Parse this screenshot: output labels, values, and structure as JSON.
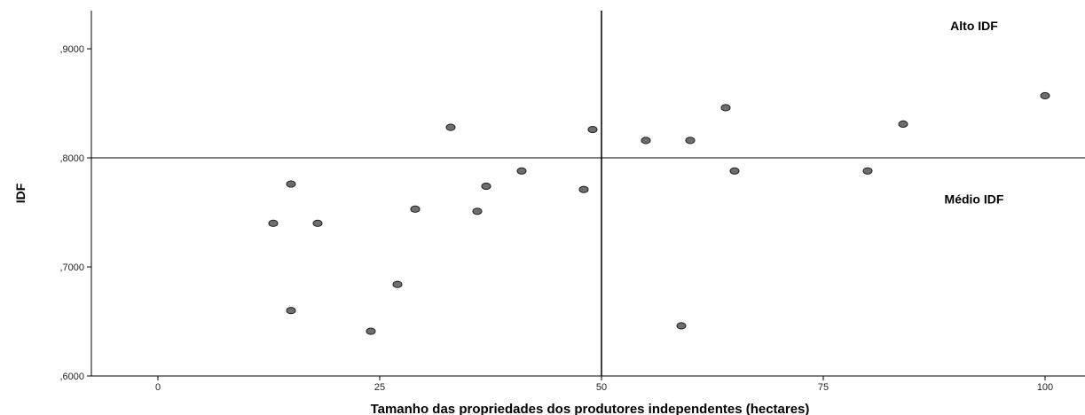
{
  "chart_data": {
    "type": "scatter",
    "xlabel": "Tamanho das propriedades dos produtores independentes (hectares)",
    "ylabel": "IDF",
    "xlim": [
      -7.5,
      104.5
    ],
    "ylim": [
      0.6,
      0.935
    ],
    "x_ticks": [
      0,
      25,
      50,
      75,
      100
    ],
    "x_tick_labels": [
      "0",
      "25",
      "50",
      "75",
      "100"
    ],
    "y_ticks": [
      0.6,
      0.7,
      0.8,
      0.9
    ],
    "y_tick_labels": [
      ",6000",
      ",7000",
      ",8000",
      ",9000"
    ],
    "reference_lines": {
      "x": 50,
      "y": 0.8
    },
    "annotations": [
      {
        "text": "Alto IDF",
        "x": 92,
        "y": 0.917
      },
      {
        "text": "Médio IDF",
        "x": 92,
        "y": 0.758
      }
    ],
    "grid": false,
    "marker_color": "#6e6e6e",
    "points": [
      {
        "x": 13,
        "y": 0.74
      },
      {
        "x": 15,
        "y": 0.776
      },
      {
        "x": 15,
        "y": 0.66
      },
      {
        "x": 18,
        "y": 0.74
      },
      {
        "x": 24,
        "y": 0.641
      },
      {
        "x": 27,
        "y": 0.684
      },
      {
        "x": 29,
        "y": 0.753
      },
      {
        "x": 33,
        "y": 0.828
      },
      {
        "x": 36,
        "y": 0.751
      },
      {
        "x": 37,
        "y": 0.774
      },
      {
        "x": 41,
        "y": 0.788
      },
      {
        "x": 48,
        "y": 0.771
      },
      {
        "x": 49,
        "y": 0.826
      },
      {
        "x": 55,
        "y": 0.816
      },
      {
        "x": 59,
        "y": 0.646
      },
      {
        "x": 60,
        "y": 0.816
      },
      {
        "x": 64,
        "y": 0.846
      },
      {
        "x": 65,
        "y": 0.788
      },
      {
        "x": 80,
        "y": 0.788
      },
      {
        "x": 84,
        "y": 0.831
      },
      {
        "x": 100,
        "y": 0.857
      }
    ]
  }
}
